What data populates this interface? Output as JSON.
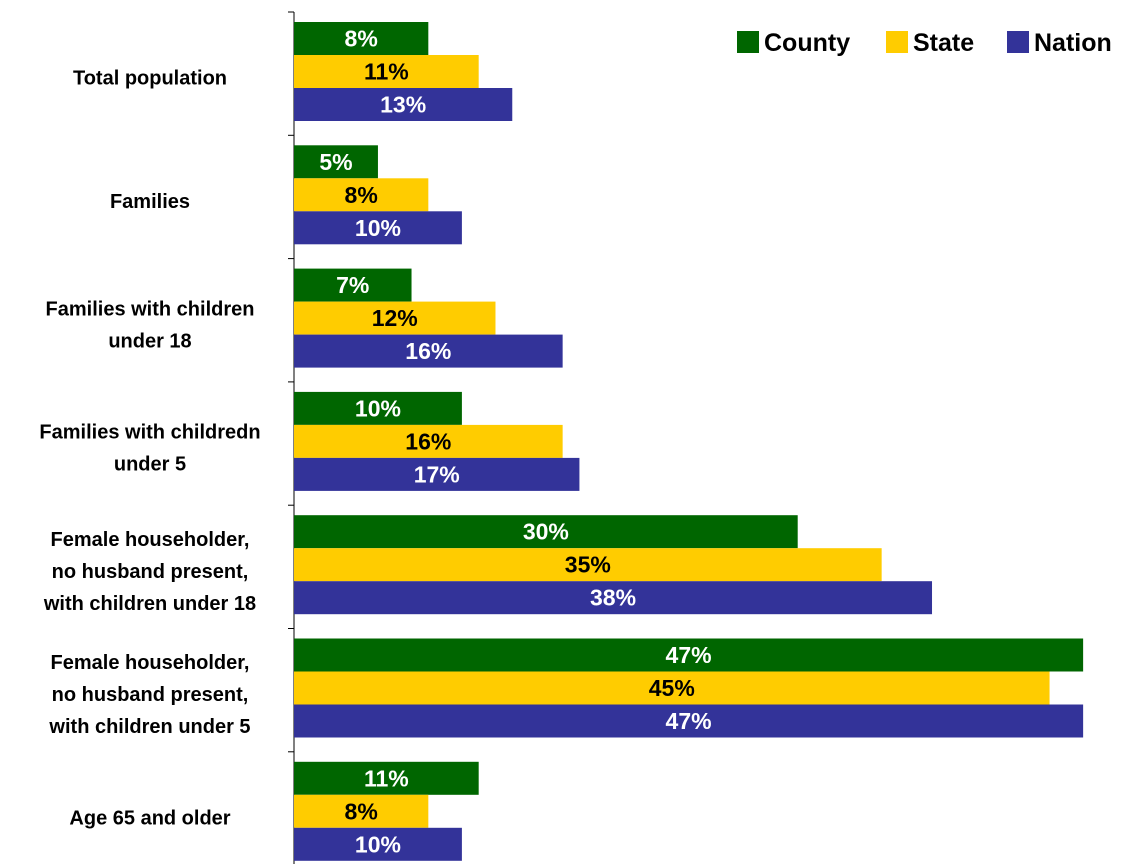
{
  "chart_data": {
    "type": "bar",
    "orientation": "horizontal",
    "categories": [
      "Total population",
      "Families",
      "Families with children under 18",
      "Families with childredn under 5",
      "Female householder, no husband present, with children under 18",
      "Female householder, no husband present, with children under 5",
      "Age 65 and older"
    ],
    "category_lines": [
      [
        "Total population"
      ],
      [
        "Families"
      ],
      [
        "Families with children",
        "under 18"
      ],
      [
        "Families with childredn",
        "under 5"
      ],
      [
        "Female householder,",
        "no husband present,",
        "with children under 18"
      ],
      [
        "Female householder,",
        "no husband present,",
        "with children under 5"
      ],
      [
        "Age 65 and older"
      ]
    ],
    "series": [
      {
        "name": "County",
        "color": "#006600",
        "label_color": "#ffffff",
        "values": [
          8,
          5,
          7,
          10,
          30,
          47,
          11
        ]
      },
      {
        "name": "State",
        "color": "#ffcc00",
        "label_color": "#000000",
        "values": [
          11,
          8,
          12,
          16,
          35,
          45,
          8
        ]
      },
      {
        "name": "Nation",
        "color": "#333399",
        "label_color": "#ffffff",
        "values": [
          13,
          10,
          16,
          17,
          38,
          47,
          10
        ]
      }
    ],
    "value_format": "{v}%",
    "xlim": [
      0,
      50
    ],
    "legend_position": "top-right",
    "grid": false
  }
}
